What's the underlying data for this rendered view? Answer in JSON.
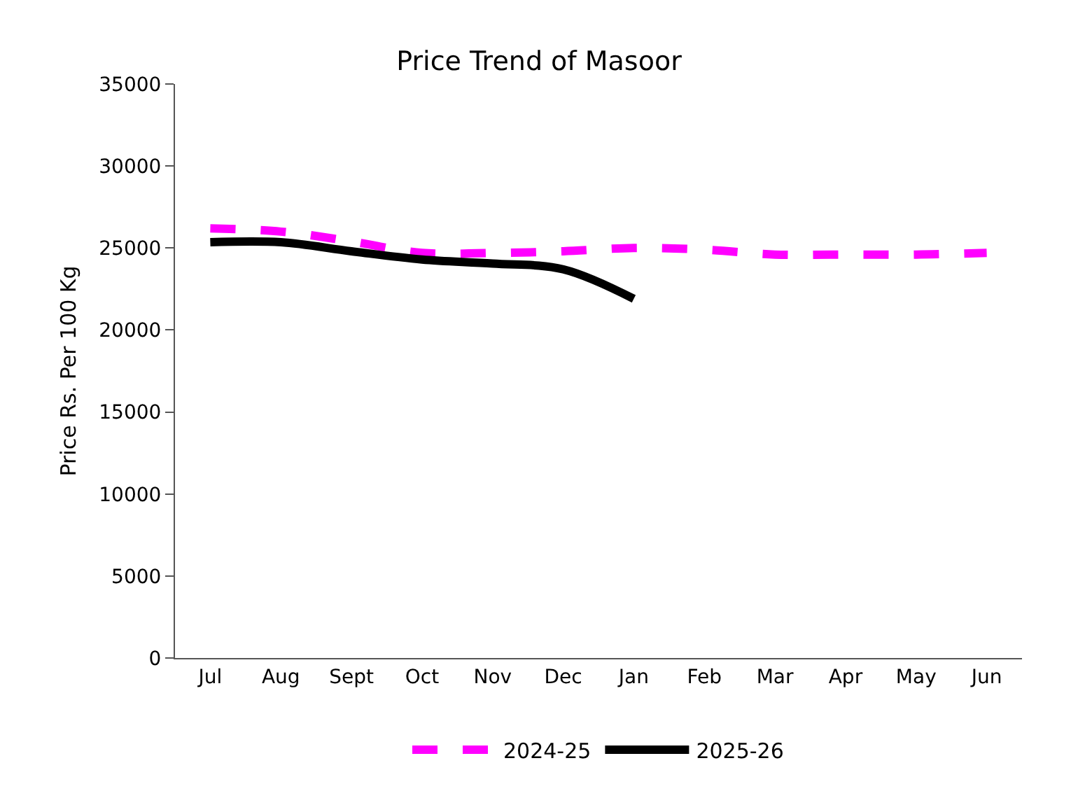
{
  "chart_data": {
    "type": "line",
    "title": "Price Trend of Masoor",
    "ylabel": "Price Rs. Per 100 Kg",
    "categories": [
      "Jul",
      "Aug",
      "Sept",
      "Oct",
      "Nov",
      "Dec",
      "Jan",
      "Feb",
      "Mar",
      "Apr",
      "May",
      "Jun"
    ],
    "series": [
      {
        "name": "2024-25",
        "color": "#ff00ff",
        "line_style": "dashed",
        "values": [
          26200,
          26000,
          25400,
          24700,
          24700,
          24800,
          25000,
          24900,
          24600,
          24600,
          24600,
          24700
        ]
      },
      {
        "name": "2025-26",
        "color": "#000000",
        "line_style": "solid",
        "values": [
          25350,
          25350,
          24800,
          24300,
          24050,
          23700,
          21900,
          null,
          null,
          null,
          null,
          null
        ]
      }
    ],
    "ylim": [
      0,
      35000
    ],
    "yticks": [
      0,
      5000,
      10000,
      15000,
      20000,
      25000,
      30000,
      35000
    ],
    "grid": false,
    "legend": "bottom",
    "marker": "none"
  }
}
